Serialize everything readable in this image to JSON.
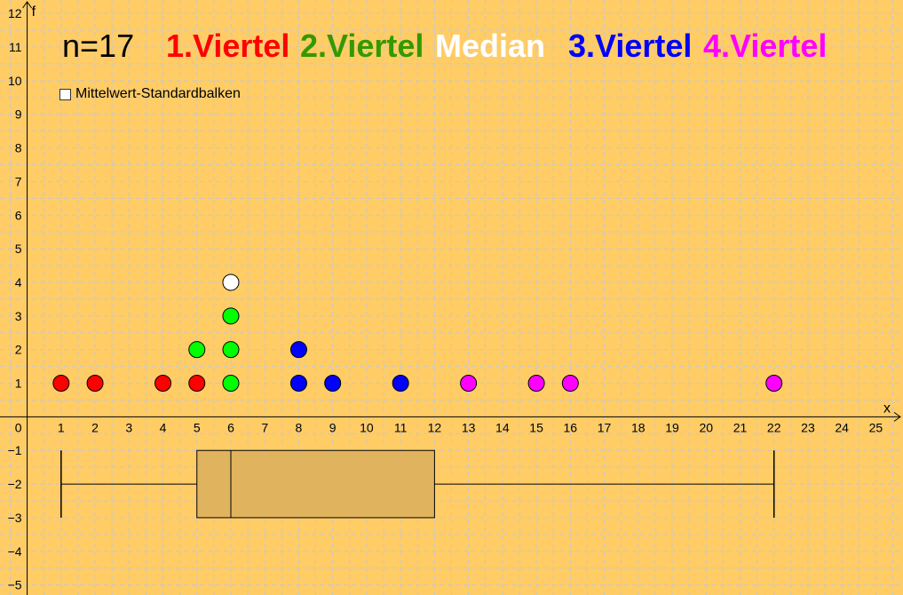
{
  "header": {
    "n_label": "n=17",
    "labels": [
      {
        "text": "1.Viertel",
        "color": "#ff0000"
      },
      {
        "text": "2.Viertel",
        "color": "#339900"
      },
      {
        "text": "Median",
        "color": "#ffffff"
      },
      {
        "text": "3.Viertel",
        "color": "#0000ff"
      },
      {
        "text": "4.Viertel",
        "color": "#ff00ff"
      }
    ]
  },
  "checkbox": {
    "label": "Mittelwert-Standardbalken",
    "checked": false
  },
  "colors": {
    "background": "#ffcc66",
    "grid": "#c8c8c8",
    "axis": "#000000",
    "box_fill": "#e0b35e",
    "q1_dot": "#ff0000",
    "q2_dot": "#00ff00",
    "median_dot": "#ffffff",
    "q3_dot": "#0000ff",
    "q4_dot": "#ff00ff"
  },
  "chart_data": {
    "type": "scatter",
    "xlabel": "x",
    "ylabel": "f",
    "xlim": [
      -0.8,
      25.8
    ],
    "ylim": [
      -5.3,
      12.4
    ],
    "x_ticks": [
      0,
      1,
      2,
      3,
      4,
      5,
      6,
      7,
      8,
      9,
      10,
      11,
      12,
      13,
      14,
      15,
      16,
      17,
      18,
      19,
      20,
      21,
      22,
      23,
      24,
      25
    ],
    "y_ticks": [
      -5,
      -4,
      -3,
      -2,
      -1,
      1,
      2,
      3,
      4,
      5,
      6,
      7,
      8,
      9,
      10,
      11,
      12
    ],
    "y_tick_labels": {
      "-5": "−5",
      "-4": "−4",
      "-3": "−3",
      "-2": "−2",
      "-1": "−1"
    },
    "grid": true,
    "points": [
      {
        "x": 1,
        "y": 1,
        "group": "q1"
      },
      {
        "x": 2,
        "y": 1,
        "group": "q1"
      },
      {
        "x": 4,
        "y": 1,
        "group": "q1"
      },
      {
        "x": 5,
        "y": 1,
        "group": "q1"
      },
      {
        "x": 5,
        "y": 2,
        "group": "q2"
      },
      {
        "x": 6,
        "y": 1,
        "group": "q2"
      },
      {
        "x": 6,
        "y": 2,
        "group": "q2"
      },
      {
        "x": 6,
        "y": 3,
        "group": "q2"
      },
      {
        "x": 6,
        "y": 4,
        "group": "median"
      },
      {
        "x": 8,
        "y": 1,
        "group": "q3"
      },
      {
        "x": 8,
        "y": 2,
        "group": "q3"
      },
      {
        "x": 9,
        "y": 1,
        "group": "q3"
      },
      {
        "x": 11,
        "y": 1,
        "group": "q3"
      },
      {
        "x": 13,
        "y": 1,
        "group": "q4"
      },
      {
        "x": 15,
        "y": 1,
        "group": "q4"
      },
      {
        "x": 16,
        "y": 1,
        "group": "q4"
      },
      {
        "x": 22,
        "y": 1,
        "group": "q4"
      }
    ],
    "boxplot": {
      "min": 1,
      "q1": 5,
      "median": 6,
      "q3": 12,
      "max": 22,
      "y_center": -2,
      "y_low": -3,
      "y_high": -1
    }
  }
}
